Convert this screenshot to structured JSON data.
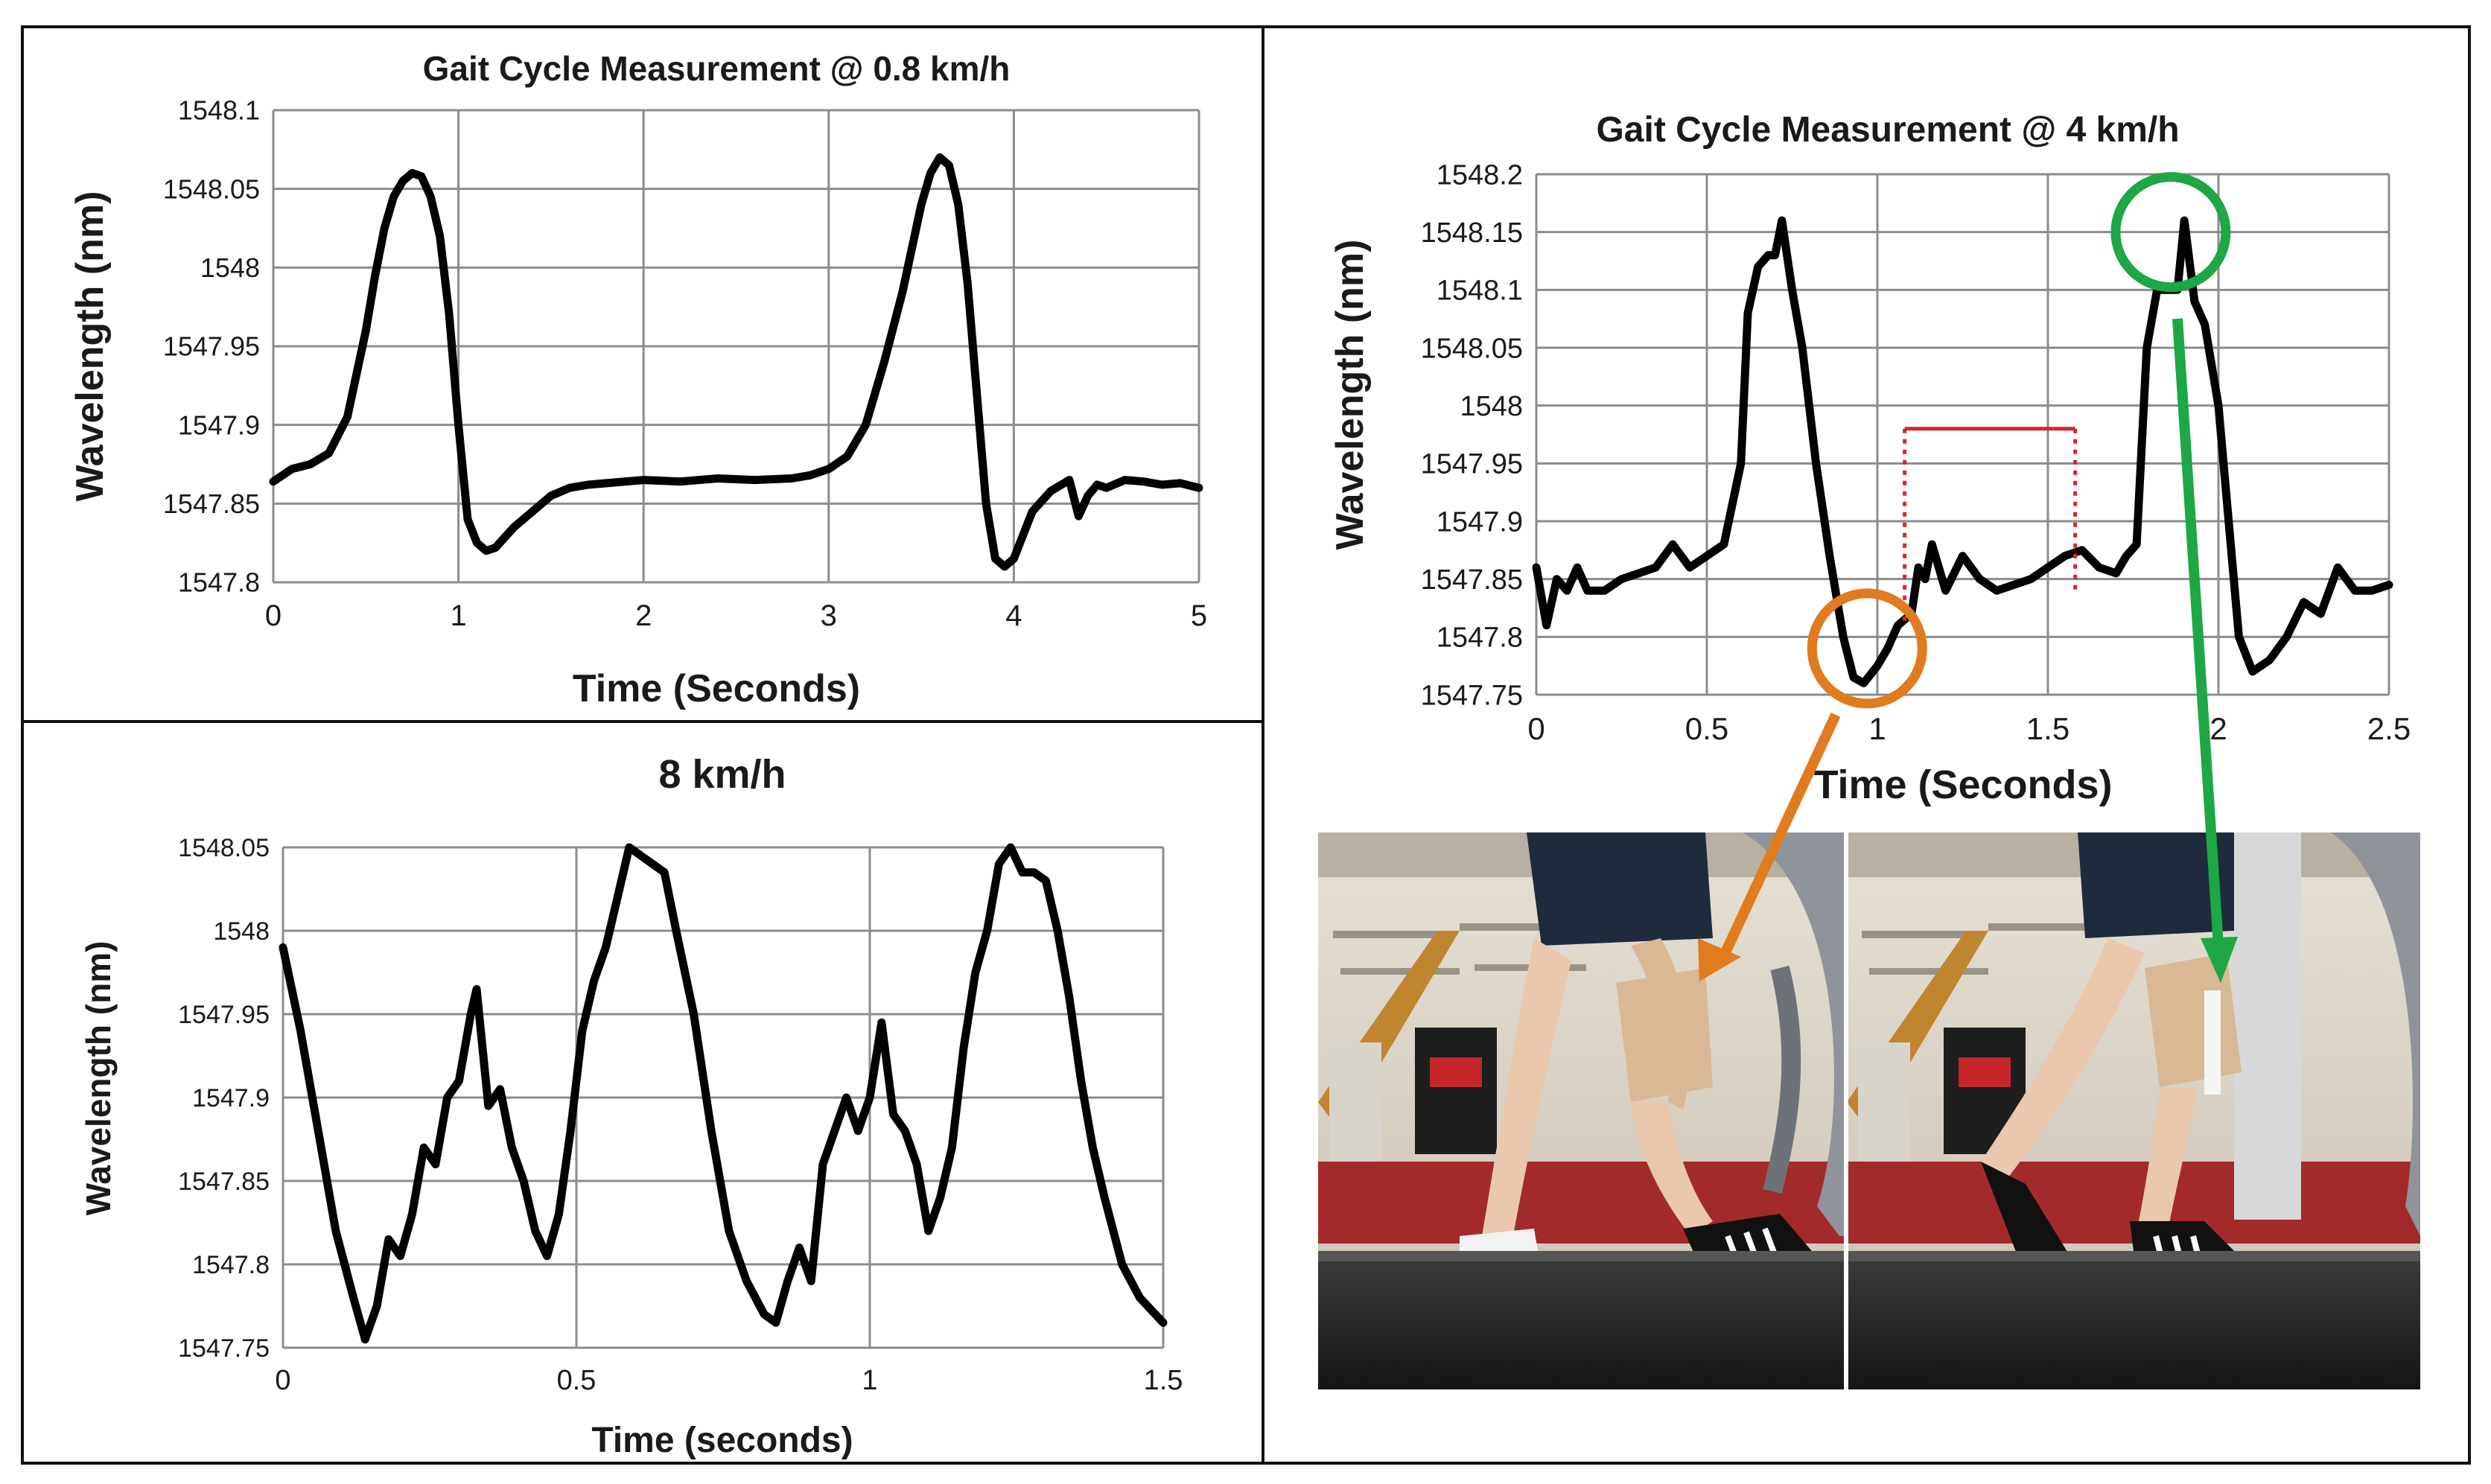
{
  "chart_data": [
    {
      "type": "line",
      "title": "Gait Cycle Measurement  @ 0.8 km/h",
      "xlabel": "Time (Seconds)",
      "ylabel": "Wavelength  (nm)",
      "xlim": [
        0,
        5
      ],
      "ylim": [
        1547.8,
        1548.1
      ],
      "x_ticks": [
        "0",
        "1",
        "2",
        "3",
        "4",
        "5"
      ],
      "y_ticks": [
        "1547.8",
        "1547.85",
        "1547.9",
        "1547.95",
        "1548",
        "1548.05",
        "1548.1"
      ],
      "grid": true,
      "series": [
        {
          "x": [
            0,
            0.1,
            0.2,
            0.3,
            0.4,
            0.5,
            0.55,
            0.6,
            0.65,
            0.7,
            0.75,
            0.8,
            0.85,
            0.9,
            0.95,
            1.0,
            1.05,
            1.1,
            1.15,
            1.2,
            1.3,
            1.4,
            1.5,
            1.6,
            1.7,
            1.8,
            2.0,
            2.2,
            2.4,
            2.6,
            2.8,
            2.9,
            3.0,
            3.1,
            3.2,
            3.3,
            3.4,
            3.5,
            3.55,
            3.6,
            3.65,
            3.7,
            3.75,
            3.8,
            3.85,
            3.9,
            3.95,
            4.0,
            4.05,
            4.1,
            4.2,
            4.3,
            4.35,
            4.4,
            4.45,
            4.5,
            4.6,
            4.7,
            4.8,
            4.9,
            5.0
          ],
          "y": [
            1547.864,
            1547.872,
            1547.875,
            1547.882,
            1547.905,
            1547.96,
            1547.995,
            1548.025,
            1548.045,
            1548.055,
            1548.06,
            1548.058,
            1548.045,
            1548.02,
            1547.97,
            1547.9,
            1547.84,
            1547.825,
            1547.82,
            1547.822,
            1547.835,
            1547.845,
            1547.855,
            1547.86,
            1547.862,
            1547.863,
            1547.865,
            1547.864,
            1547.866,
            1547.865,
            1547.866,
            1547.868,
            1547.872,
            1547.88,
            1547.9,
            1547.94,
            1547.985,
            1548.04,
            1548.06,
            1548.07,
            1548.065,
            1548.04,
            1547.99,
            1547.92,
            1547.85,
            1547.815,
            1547.81,
            1547.815,
            1547.83,
            1547.845,
            1547.858,
            1547.865,
            1547.842,
            1547.855,
            1547.862,
            1547.86,
            1547.865,
            1547.864,
            1547.862,
            1547.863,
            1547.86
          ]
        }
      ]
    },
    {
      "type": "line",
      "title": "8 km/h",
      "xlabel": "Time (seconds)",
      "ylabel": "Wavelength (nm)",
      "xlim": [
        0,
        1.5
      ],
      "ylim": [
        1547.75,
        1548.05
      ],
      "x_ticks": [
        "0",
        "0.5",
        "1",
        "1.5"
      ],
      "y_ticks": [
        "1547.75",
        "1547.8",
        "1547.85",
        "1547.9",
        "1547.95",
        "1548",
        "1548.05"
      ],
      "grid": true,
      "series": [
        {
          "x": [
            0,
            0.03,
            0.06,
            0.09,
            0.12,
            0.14,
            0.16,
            0.18,
            0.2,
            0.22,
            0.24,
            0.26,
            0.28,
            0.3,
            0.32,
            0.33,
            0.35,
            0.37,
            0.39,
            0.41,
            0.43,
            0.45,
            0.47,
            0.49,
            0.51,
            0.53,
            0.55,
            0.57,
            0.59,
            0.61,
            0.63,
            0.65,
            0.67,
            0.7,
            0.73,
            0.76,
            0.79,
            0.82,
            0.84,
            0.86,
            0.88,
            0.9,
            0.92,
            0.94,
            0.96,
            0.98,
            1.0,
            1.02,
            1.04,
            1.06,
            1.08,
            1.1,
            1.12,
            1.14,
            1.16,
            1.18,
            1.2,
            1.22,
            1.24,
            1.26,
            1.28,
            1.3,
            1.32,
            1.34,
            1.36,
            1.38,
            1.4,
            1.43,
            1.46,
            1.5
          ],
          "y": [
            1547.99,
            1547.94,
            1547.88,
            1547.82,
            1547.78,
            1547.755,
            1547.775,
            1547.815,
            1547.805,
            1547.83,
            1547.87,
            1547.86,
            1547.9,
            1547.91,
            1547.95,
            1547.965,
            1547.895,
            1547.905,
            1547.87,
            1547.85,
            1547.82,
            1547.805,
            1547.83,
            1547.88,
            1547.94,
            1547.97,
            1547.99,
            1548.02,
            1548.05,
            1548.045,
            1548.04,
            1548.035,
            1548.0,
            1547.95,
            1547.88,
            1547.82,
            1547.79,
            1547.77,
            1547.765,
            1547.79,
            1547.81,
            1547.79,
            1547.86,
            1547.88,
            1547.9,
            1547.88,
            1547.9,
            1547.945,
            1547.89,
            1547.88,
            1547.86,
            1547.82,
            1547.84,
            1547.87,
            1547.93,
            1547.975,
            1548.0,
            1548.04,
            1548.05,
            1548.035,
            1548.035,
            1548.03,
            1548.0,
            1547.96,
            1547.91,
            1547.87,
            1547.84,
            1547.8,
            1547.78,
            1547.765
          ]
        }
      ]
    },
    {
      "type": "line",
      "title": "Gait Cycle Measurement @ 4 km/h",
      "xlabel": "Time (Seconds)",
      "ylabel": "Wavelength (nm)",
      "xlim": [
        0,
        2.5
      ],
      "ylim": [
        1547.75,
        1548.2
      ],
      "x_ticks": [
        "0",
        "0.5",
        "1",
        "1.5",
        "2",
        "2.5"
      ],
      "y_ticks": [
        "1547.75",
        "1547.8",
        "1547.85",
        "1547.9",
        "1547.95",
        "1548",
        "1548.05",
        "1548.1",
        "1548.15",
        "1548.2"
      ],
      "grid": true,
      "series": [
        {
          "x": [
            0,
            0.03,
            0.06,
            0.09,
            0.12,
            0.15,
            0.2,
            0.25,
            0.3,
            0.35,
            0.4,
            0.45,
            0.5,
            0.55,
            0.6,
            0.62,
            0.65,
            0.68,
            0.7,
            0.72,
            0.75,
            0.78,
            0.82,
            0.86,
            0.9,
            0.93,
            0.96,
            1.0,
            1.03,
            1.06,
            1.1,
            1.12,
            1.14,
            1.16,
            1.2,
            1.25,
            1.3,
            1.35,
            1.4,
            1.45,
            1.5,
            1.55,
            1.6,
            1.65,
            1.7,
            1.73,
            1.76,
            1.79,
            1.82,
            1.85,
            1.88,
            1.9,
            1.93,
            1.96,
            2.0,
            2.03,
            2.06,
            2.1,
            2.15,
            2.2,
            2.25,
            2.3,
            2.35,
            2.4,
            2.45,
            2.5
          ],
          "y": [
            1547.86,
            1547.81,
            1547.85,
            1547.84,
            1547.86,
            1547.84,
            1547.84,
            1547.85,
            1547.855,
            1547.86,
            1547.88,
            1547.86,
            1547.87,
            1547.88,
            1547.95,
            1548.08,
            1548.12,
            1548.13,
            1548.13,
            1548.16,
            1548.1,
            1548.05,
            1547.95,
            1547.87,
            1547.8,
            1547.765,
            1547.76,
            1547.775,
            1547.79,
            1547.81,
            1547.82,
            1547.86,
            1547.85,
            1547.88,
            1547.84,
            1547.87,
            1547.85,
            1547.84,
            1547.845,
            1547.85,
            1547.86,
            1547.87,
            1547.875,
            1547.86,
            1547.855,
            1547.87,
            1547.88,
            1548.05,
            1548.1,
            1548.1,
            1548.1,
            1548.16,
            1548.09,
            1548.07,
            1548.0,
            1547.9,
            1547.8,
            1547.77,
            1547.78,
            1547.8,
            1547.83,
            1547.82,
            1547.86,
            1547.84,
            1547.84,
            1547.845
          ]
        }
      ],
      "annotations": [
        {
          "type": "bracket",
          "color": "#d9262b",
          "x_start": 1.08,
          "x_end": 1.58,
          "y": 1547.98
        },
        {
          "type": "circle",
          "color": "#e07b1f",
          "x": 0.97,
          "y": 1547.79
        },
        {
          "type": "circle",
          "color": "#1da745",
          "x": 1.86,
          "y": 1548.15
        }
      ]
    }
  ],
  "photos": {
    "left_panel": "treadmill-photo-knee-bent",
    "right_panel": "treadmill-photo-heel-strike",
    "colors": {
      "belt": "#2b2b2b",
      "floor": "#a32a2a",
      "wall": "#d9d2c6",
      "bandage": "#d9b896",
      "shorts": "#1f2a3d"
    }
  },
  "colors": {
    "orange": "#e07b1f",
    "green": "#1da745",
    "red": "#d9262b",
    "trace": "#000000"
  }
}
